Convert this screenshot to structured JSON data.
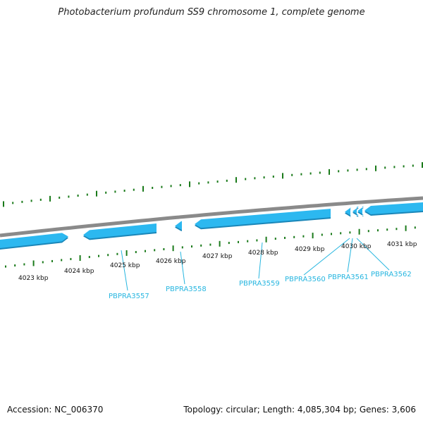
{
  "title": "Photobacterium profundum SS9 chromosome 1, complete genome",
  "footer": {
    "accession": "Accession: NC_006370",
    "summary": "Topology: circular; Length: 4,085,304 bp; Genes: 3,606"
  },
  "colors": {
    "backbone": "#8a8a8a",
    "tick": "#1a7a1a",
    "gene": "#2cb8f0",
    "gene_shadow": "#1a86b8",
    "label": "#27b6e0"
  },
  "axis_labels": [
    "4023 kbp",
    "4024 kbp",
    "4025 kbp",
    "4026 kbp",
    "4027 kbp",
    "4028 kbp",
    "4029 kbp",
    "4030 kbp",
    "4031 kbp"
  ],
  "gene_labels": [
    "PBPRA3557",
    "PBPRA3558",
    "PBPRA3559",
    "PBPRA3560",
    "PBPRA3561",
    "PBPRA3562"
  ]
}
